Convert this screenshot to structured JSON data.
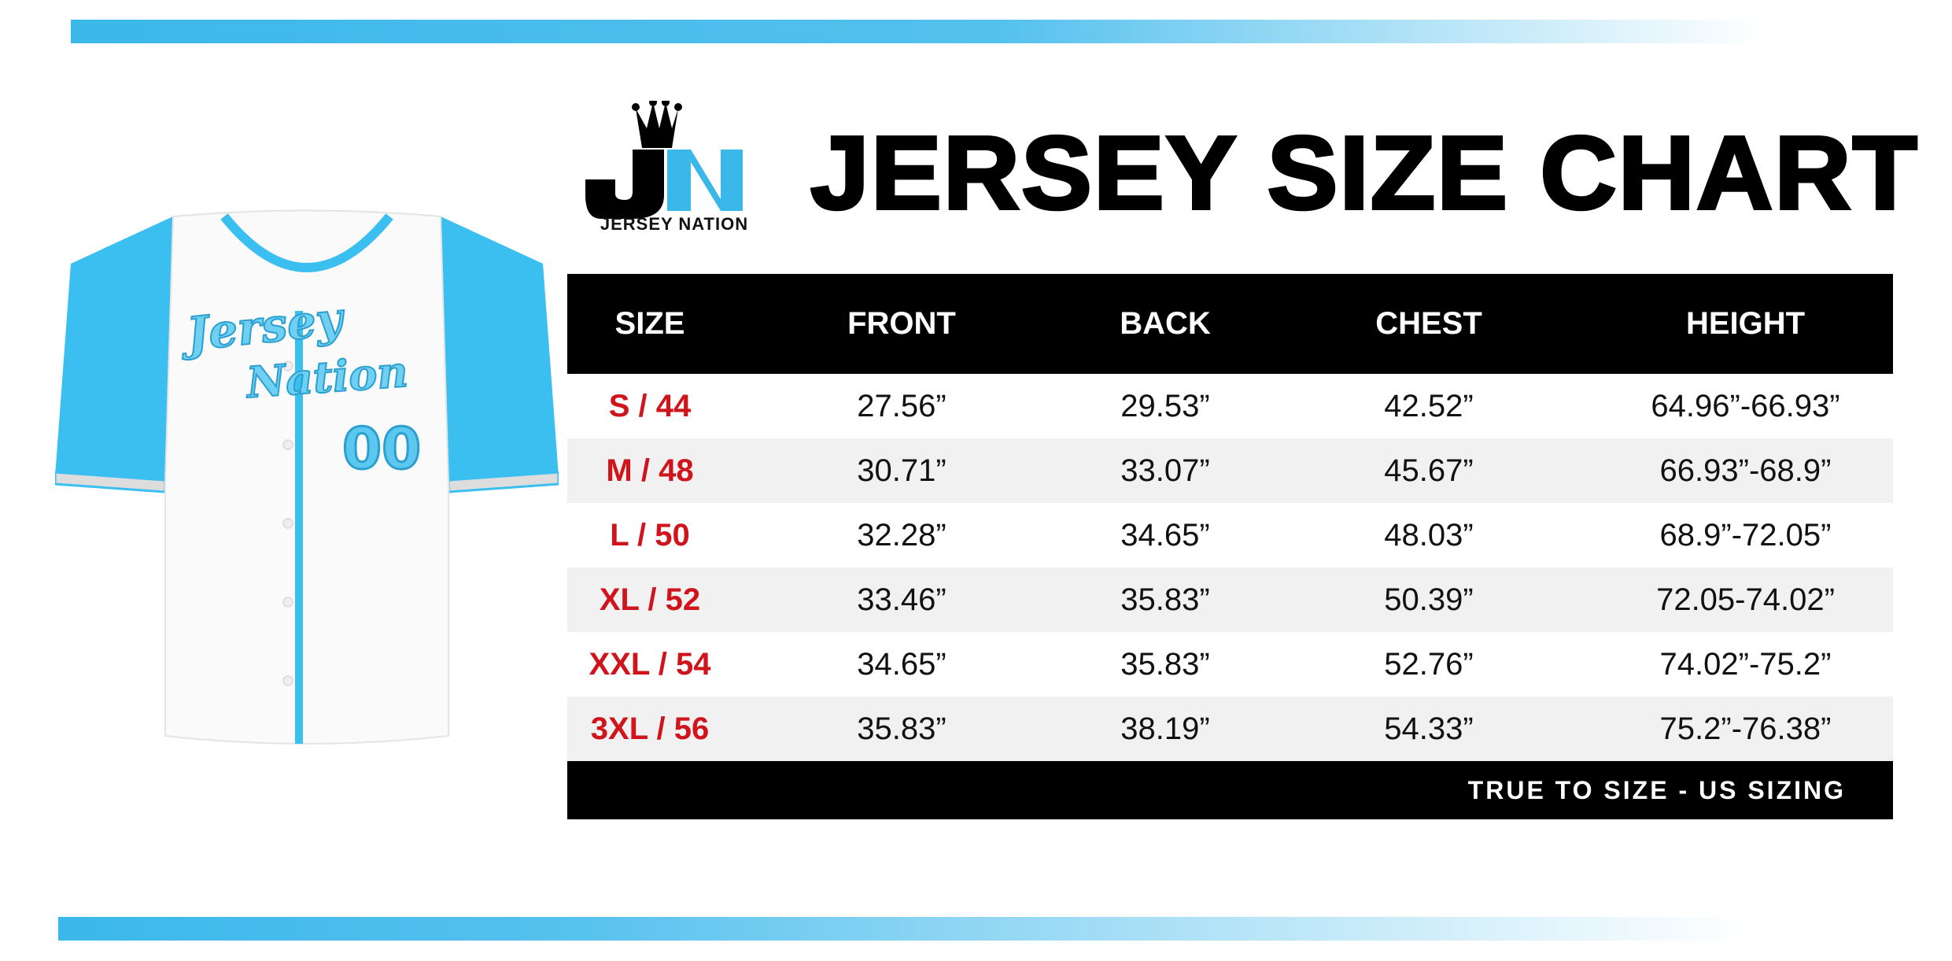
{
  "brand": {
    "name": "JERSEY NATION",
    "logo_letters": "JN",
    "accent": "#3bb8ea",
    "size_color": "#d0141c"
  },
  "title": "JERSEY SIZE CHART",
  "jersey": {
    "script_line1": "Jersey",
    "script_line2": "Nation",
    "number": "00"
  },
  "table": {
    "headers": [
      "SIZE",
      "FRONT",
      "BACK",
      "CHEST",
      "HEIGHT"
    ],
    "rows": [
      [
        "S / 44",
        "27.56”",
        "29.53”",
        "42.52”",
        "64.96”-66.93”"
      ],
      [
        "M / 48",
        "30.71”",
        "33.07”",
        "45.67”",
        "66.93”-68.9”"
      ],
      [
        "L / 50",
        "32.28”",
        "34.65”",
        "48.03”",
        "68.9”-72.05”"
      ],
      [
        "XL / 52",
        "33.46”",
        "35.83”",
        "50.39”",
        "72.05-74.02”"
      ],
      [
        "XXL / 54",
        "34.65”",
        "35.83”",
        "52.76”",
        "74.02”-75.2”"
      ],
      [
        "3XL  / 56",
        "35.83”",
        "38.19”",
        "54.33”",
        "75.2”-76.38”"
      ]
    ],
    "footer": "TRUE TO SIZE - US SIZING"
  }
}
